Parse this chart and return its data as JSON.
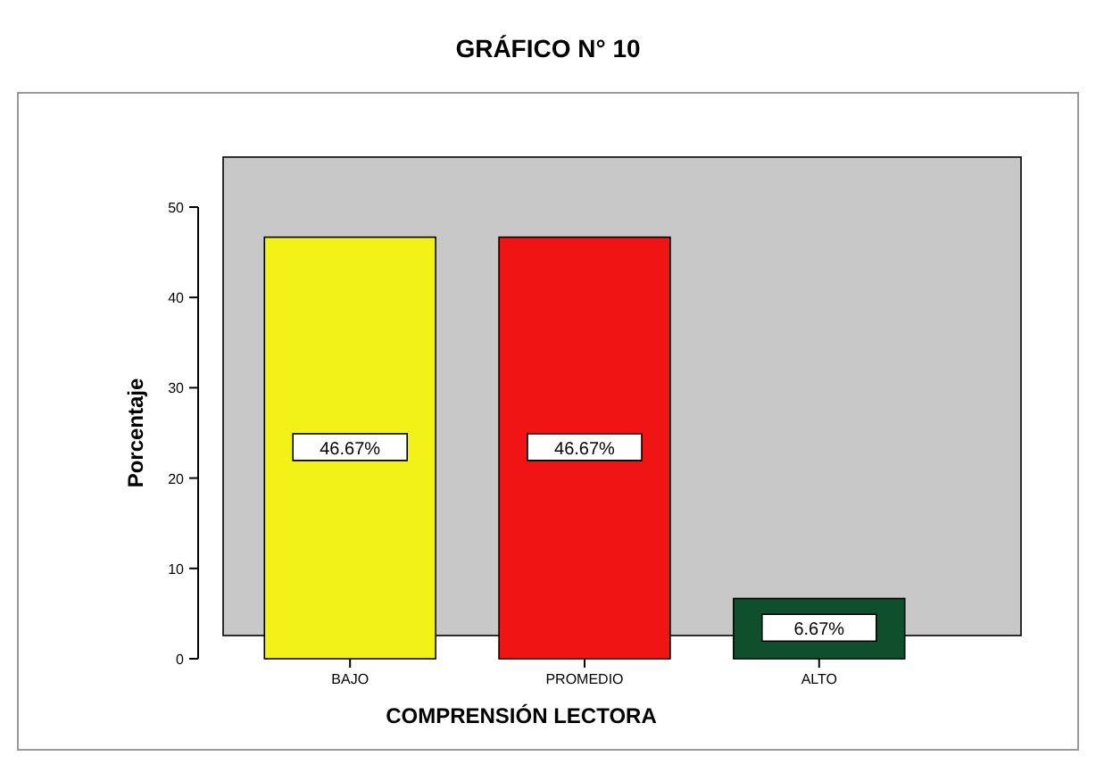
{
  "chart_data": {
    "type": "bar",
    "title": "GRÁFICO N° 10",
    "xlabel": "COMPRENSIÓN LECTORA",
    "ylabel": "Porcentaje",
    "categories": [
      "BAJO",
      "PROMEDIO",
      "ALTO"
    ],
    "values": [
      46.67,
      46.67,
      6.67
    ],
    "colors": [
      "#f2f218",
      "#f01414",
      "#0f4f2c"
    ],
    "value_labels": [
      "46.67%",
      "46.67%",
      "6.67%"
    ],
    "ylim": [
      0,
      50
    ],
    "yticks": [
      0,
      10,
      20,
      30,
      40,
      50
    ],
    "grid": false
  }
}
